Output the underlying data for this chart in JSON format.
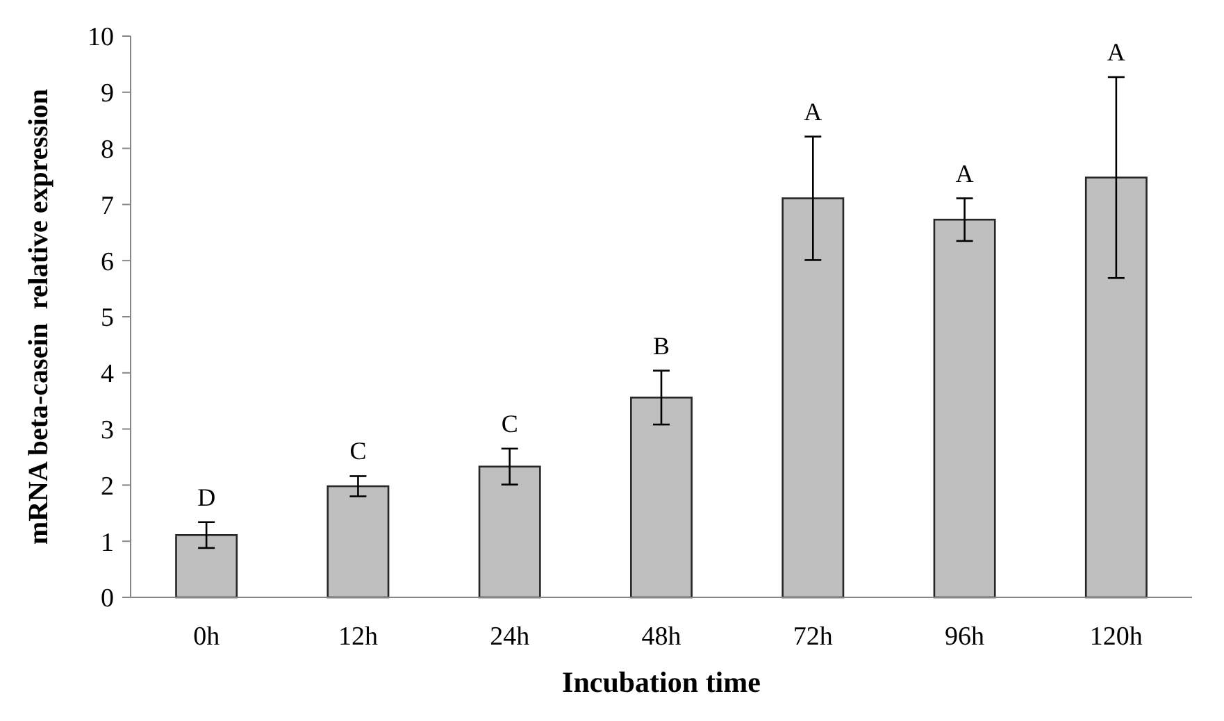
{
  "chart_data": {
    "type": "bar",
    "xlabel": "Incubation time",
    "ylabel": "mRNA beta-casein  relative expression",
    "categories": [
      "0h",
      "12h",
      "24h",
      "48h",
      "72h",
      "96h",
      "120h"
    ],
    "values": [
      1.11,
      1.98,
      2.33,
      3.56,
      7.11,
      6.73,
      7.48
    ],
    "errors": [
      0.23,
      0.18,
      0.32,
      0.48,
      1.1,
      0.38,
      1.79
    ],
    "color": "#bfbfbf",
    "ylim": [
      0,
      10
    ],
    "yticks": [
      0,
      1,
      2,
      3,
      4,
      5,
      6,
      7,
      8,
      9,
      10
    ],
    "grid": false,
    "annotations": [
      {
        "text": "D",
        "x": "0h",
        "y": 1.34
      },
      {
        "text": "C",
        "x": "12h",
        "y": 2.16
      },
      {
        "text": "C",
        "x": "24h",
        "y": 2.65
      },
      {
        "text": "B",
        "x": "48h",
        "y": 4.04
      },
      {
        "text": "A",
        "x": "72h",
        "y": 8.21
      },
      {
        "text": "A",
        "x": "96h",
        "y": 7.11
      },
      {
        "text": "A",
        "x": "120h",
        "y": 9.27
      }
    ]
  }
}
